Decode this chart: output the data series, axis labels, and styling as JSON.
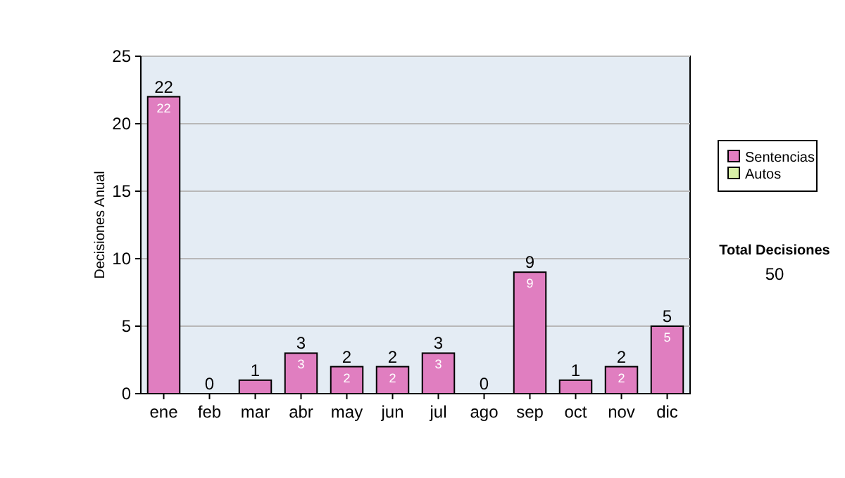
{
  "chart_data": {
    "type": "bar",
    "ylabel": "Decisiones Anual",
    "categories": [
      "ene",
      "feb",
      "mar",
      "abr",
      "may",
      "jun",
      "jul",
      "ago",
      "sep",
      "oct",
      "nov",
      "dic"
    ],
    "series": [
      {
        "name": "Sentencias",
        "color": "#e07ec0",
        "values": [
          22,
          0,
          1,
          3,
          2,
          2,
          3,
          0,
          9,
          1,
          2,
          5
        ],
        "value_labels": [
          "22",
          null,
          null,
          "3",
          "2",
          "2",
          "3",
          null,
          "9",
          null,
          "2",
          "5"
        ]
      },
      {
        "name": "Autos",
        "color": "#d8f0a8",
        "values": [
          0,
          0,
          0,
          0,
          0,
          0,
          0,
          0,
          0,
          0,
          0,
          0
        ]
      }
    ],
    "stacked": true,
    "totals": [
      "22",
      "0",
      "1",
      "3",
      "2",
      "2",
      "3",
      "0",
      "9",
      "1",
      "2",
      "5"
    ],
    "ylim": [
      0,
      25
    ],
    "yticks": [
      0,
      5,
      10,
      15,
      20,
      25
    ],
    "grid": "y",
    "legend": "right",
    "annotations": [
      "Total Decisiones",
      "50"
    ]
  }
}
